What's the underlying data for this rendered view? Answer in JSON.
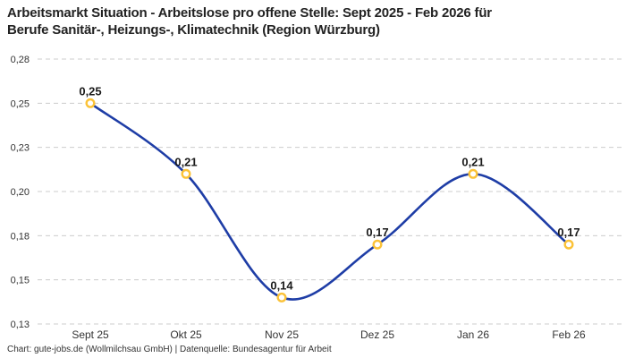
{
  "header": {
    "title_line1": "Arbeitsmarkt Situation - Arbeitslose pro offene Stelle: Sept 2025 - Feb 2026 für",
    "title_line2": "Berufe Sanitär-, Heizungs-, Klimatechnik (Region Würzburg)"
  },
  "footer": {
    "credit": "Chart: gute-jobs.de (Wollmilchsau GmbH) | Datenquelle: Bundesagentur für Arbeit"
  },
  "chart_data": {
    "type": "line",
    "title": "Arbeitsmarkt Situation - Arbeitslose pro offene Stelle: Sept 2025 - Feb 2026 für Berufe Sanitär-, Heizungs-, Klimatechnik (Region Würzburg)",
    "categories": [
      "Sept 25",
      "Okt 25",
      "Nov 25",
      "Dez 25",
      "Jan 26",
      "Feb 26"
    ],
    "values": [
      0.25,
      0.21,
      0.14,
      0.17,
      0.21,
      0.17
    ],
    "point_labels": [
      "0,25",
      "0,21",
      "0,14",
      "0,17",
      "0,21",
      "0,17"
    ],
    "plot_values": [
      0.255,
      0.215,
      0.145,
      0.175,
      0.215,
      0.175
    ],
    "xlabel": "",
    "ylabel": "",
    "ylim": [
      0.13,
      0.28
    ],
    "y_tick_labels": [
      "0,28",
      "0,25",
      "0,23",
      "0,20",
      "0,18",
      "0,15",
      "0,13"
    ],
    "grid": "horizontal-dashed",
    "legend": "none",
    "marker_style": "hollow-circle",
    "line_style": "smooth-spline",
    "colors": {
      "line": "#1e3da6",
      "marker_stroke": "#fbc237",
      "marker_fill": "#ffffff",
      "grid": "#cccccc",
      "point_label": "#1a1a1a",
      "axis_text": "#333333",
      "title": "#222222",
      "background": "#ffffff"
    }
  }
}
